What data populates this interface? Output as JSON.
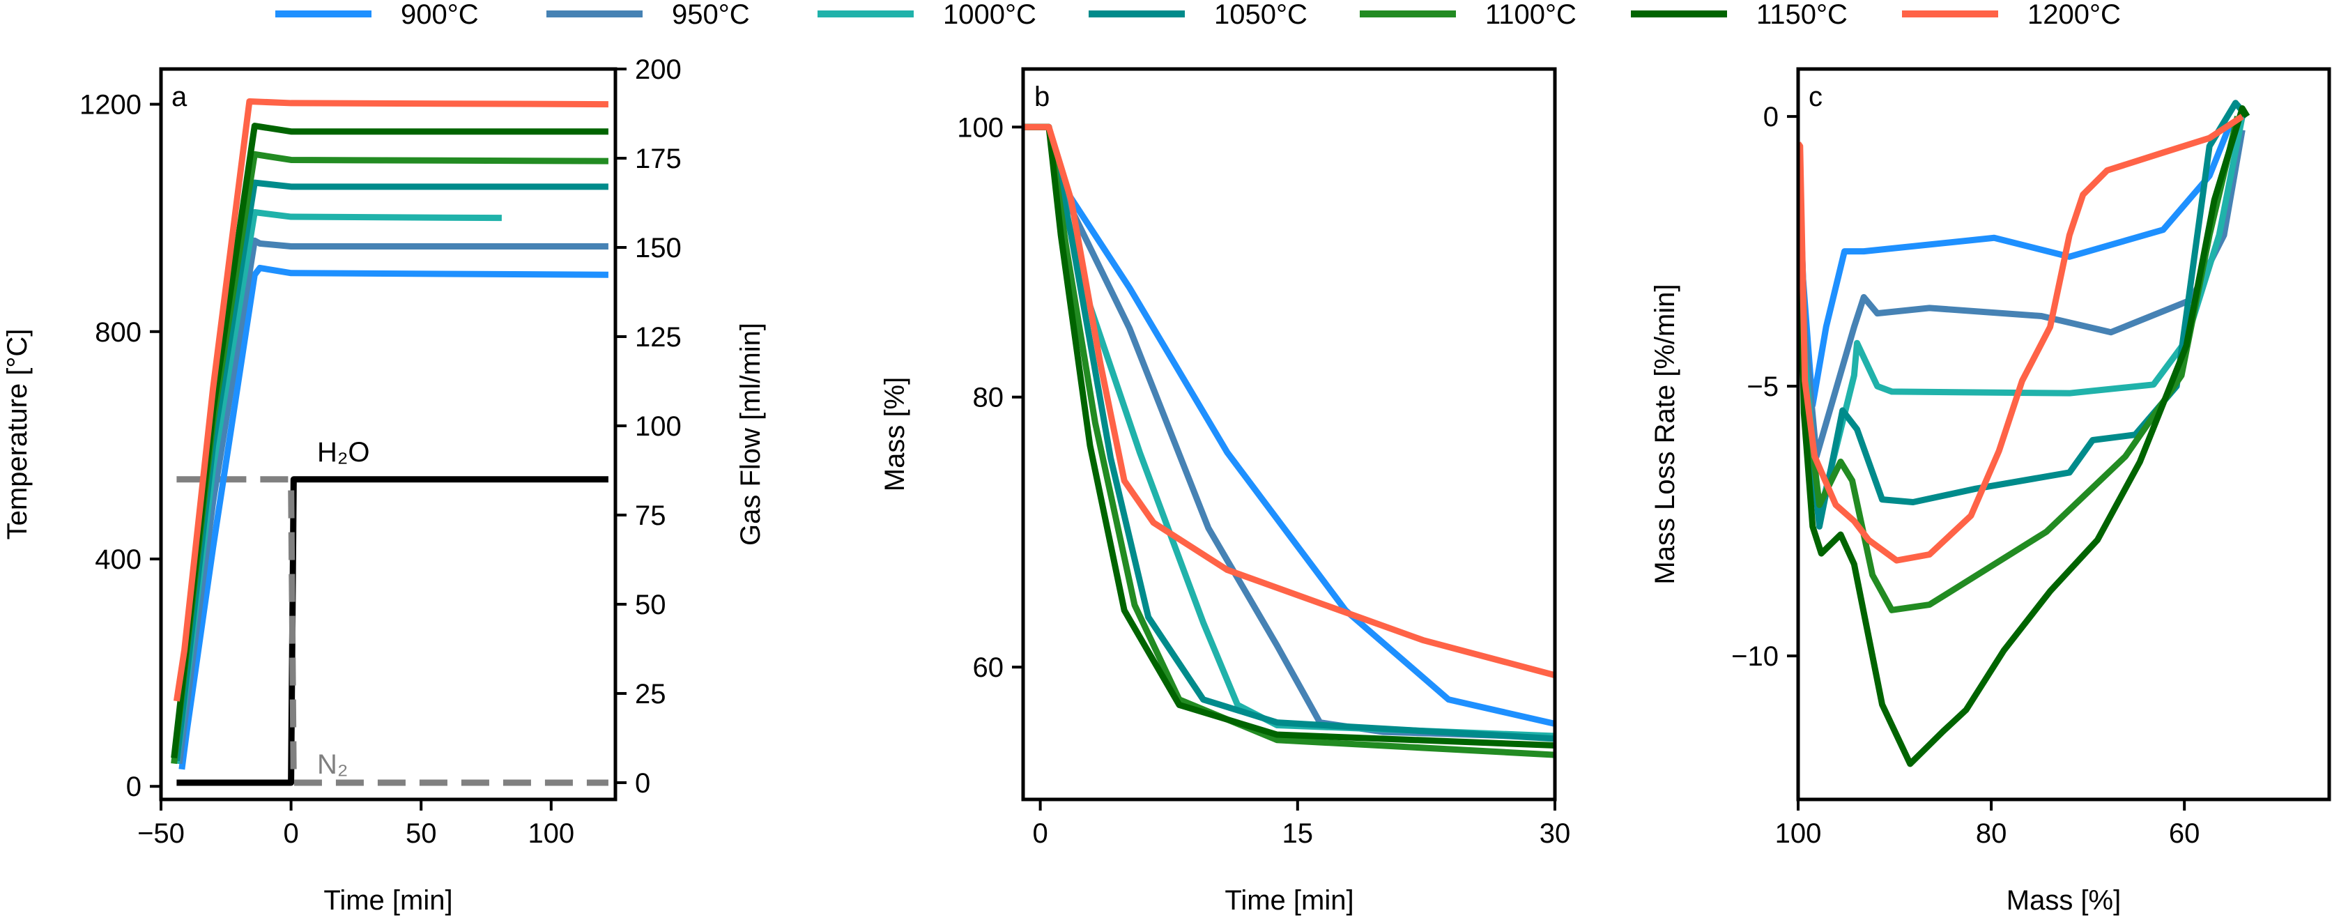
{
  "legend": {
    "placement": "top",
    "items": [
      {
        "label": "900°C",
        "color": "#1e90ff"
      },
      {
        "label": "950°C",
        "color": "#4682b4"
      },
      {
        "label": "1000°C",
        "color": "#20b2aa"
      },
      {
        "label": "1050°C",
        "color": "#008b8b"
      },
      {
        "label": "1100°C",
        "color": "#228b22"
      },
      {
        "label": "1150°C",
        "color": "#006400"
      },
      {
        "label": "1200°C",
        "color": "#ff6347"
      }
    ]
  },
  "chart_data": [
    {
      "type": "line",
      "panel_label": "a",
      "xlabel": "Time [min]",
      "ylabel": "Temperature [°C]",
      "y2label": "Gas Flow [ml/min]",
      "xlim": [
        -50,
        124.7
      ],
      "ylim": [
        -23,
        1262
      ],
      "y2lim": [
        -4.7,
        200
      ],
      "xticks": [
        -50,
        0,
        50,
        100
      ],
      "xtick_labels": [
        "−50",
        "0",
        "50",
        "100"
      ],
      "yticks": [
        0,
        400,
        800,
        1200
      ],
      "y2ticks": [
        0,
        25,
        50,
        75,
        100,
        125,
        150,
        175,
        200
      ],
      "series": [
        {
          "name": "900°C",
          "points": [
            [
              -42,
              30
            ],
            [
              -40,
              100
            ],
            [
              -30,
              420
            ],
            [
              -14,
              900
            ],
            [
              -12,
              912
            ],
            [
              0,
              903
            ],
            [
              122,
              900
            ]
          ]
        },
        {
          "name": "950°C",
          "points": [
            [
              -43,
              40
            ],
            [
              -41,
              110
            ],
            [
              -30,
              500
            ],
            [
              -14,
              960
            ],
            [
              -12,
              955
            ],
            [
              0,
              950
            ],
            [
              122,
              950
            ]
          ]
        },
        {
          "name": "1000°C",
          "points": [
            [
              -44,
              40
            ],
            [
              -42,
              110
            ],
            [
              -30,
              560
            ],
            [
              -14,
              1010
            ],
            [
              0,
              1002
            ],
            [
              81,
              1000
            ]
          ]
        },
        {
          "name": "1050°C",
          "points": [
            [
              -44,
              45
            ],
            [
              -42,
              120
            ],
            [
              -30,
              600
            ],
            [
              -14,
              1062
            ],
            [
              0,
              1055
            ],
            [
              122,
              1055
            ]
          ]
        },
        {
          "name": "1100°C",
          "points": [
            [
              -45,
              40
            ],
            [
              -43,
              120
            ],
            [
              -30,
              640
            ],
            [
              -14,
              1112
            ],
            [
              0,
              1102
            ],
            [
              122,
              1100
            ]
          ]
        },
        {
          "name": "1150°C",
          "points": [
            [
              -45,
              50
            ],
            [
              -43,
              130
            ],
            [
              -30,
              660
            ],
            [
              -14,
              1162
            ],
            [
              0,
              1152
            ],
            [
              122,
              1152
            ]
          ]
        },
        {
          "name": "1200°C",
          "points": [
            [
              -44,
              150
            ],
            [
              -41,
              240
            ],
            [
              -30,
              700
            ],
            [
              -16,
              1205
            ],
            [
              0,
              1202
            ],
            [
              122,
              1200
            ]
          ]
        }
      ],
      "gas_series": [
        {
          "name": "H₂O",
          "style": "solid",
          "color": "#000000",
          "points": [
            [
              -44,
              0
            ],
            [
              0,
              0
            ],
            [
              1,
              85
            ],
            [
              122,
              85
            ]
          ]
        },
        {
          "name": "N₂",
          "style": "dashed",
          "color": "#808080",
          "points": [
            [
              -44,
              85
            ],
            [
              0,
              85
            ],
            [
              1,
              0
            ],
            [
              122,
              0
            ]
          ]
        }
      ],
      "annotations": {
        "h2o": "H₂O",
        "n2": "N₂"
      }
    },
    {
      "type": "line",
      "panel_label": "b",
      "xlabel": "Time [min]",
      "ylabel": "Mass [%]",
      "xlim": [
        -1,
        30
      ],
      "ylim": [
        50.2,
        104.3
      ],
      "xticks": [
        0,
        15,
        30
      ],
      "yticks": [
        60,
        80,
        100
      ],
      "series": [
        {
          "name": "900°C",
          "points": [
            [
              -1,
              100
            ],
            [
              0.5,
              100
            ],
            [
              1.4,
              95.5
            ],
            [
              5.2,
              88.1
            ],
            [
              10.9,
              75.9
            ],
            [
              17.8,
              64.2
            ],
            [
              23.8,
              57.6
            ],
            [
              30,
              55.8
            ]
          ]
        },
        {
          "name": "950°C",
          "points": [
            [
              -1,
              100
            ],
            [
              0.5,
              100
            ],
            [
              1.2,
              95.5
            ],
            [
              5.2,
              85.1
            ],
            [
              9.8,
              70.3
            ],
            [
              13.8,
              61.6
            ],
            [
              16.3,
              55.9
            ],
            [
              20,
              55.2
            ],
            [
              30,
              54.8
            ]
          ]
        },
        {
          "name": "1000°C",
          "points": [
            [
              -1,
              100
            ],
            [
              0.5,
              100
            ],
            [
              2.3,
              89
            ],
            [
              5.8,
              75.9
            ],
            [
              9.5,
              63.3
            ],
            [
              11.5,
              57.2
            ],
            [
              13.8,
              55.7
            ],
            [
              30,
              54.9
            ]
          ]
        },
        {
          "name": "1050°C",
          "points": [
            [
              -1,
              100
            ],
            [
              0.5,
              100
            ],
            [
              1.8,
              92
            ],
            [
              4.1,
              75.5
            ],
            [
              6.3,
              63.7
            ],
            [
              9.5,
              57.6
            ],
            [
              13.8,
              55.9
            ],
            [
              30,
              54.7
            ]
          ]
        },
        {
          "name": "1100°C",
          "points": [
            [
              -1,
              100
            ],
            [
              0.5,
              100
            ],
            [
              1.5,
              91.2
            ],
            [
              3.2,
              78.1
            ],
            [
              5.5,
              64.6
            ],
            [
              8.1,
              57.6
            ],
            [
              13.8,
              54.6
            ],
            [
              30,
              53.5
            ]
          ]
        },
        {
          "name": "1150°C",
          "points": [
            [
              -1,
              100
            ],
            [
              0.5,
              100
            ],
            [
              1.2,
              92
            ],
            [
              2.9,
              76.4
            ],
            [
              4.9,
              64.2
            ],
            [
              8.1,
              57.2
            ],
            [
              13.8,
              55
            ],
            [
              30,
              54.2
            ]
          ]
        },
        {
          "name": "1200°C",
          "points": [
            [
              -1,
              100
            ],
            [
              0.5,
              100
            ],
            [
              1.8,
              94.6
            ],
            [
              3.5,
              82.5
            ],
            [
              4.9,
              73.8
            ],
            [
              6.6,
              70.7
            ],
            [
              10.9,
              67.2
            ],
            [
              16.6,
              64.6
            ],
            [
              22.3,
              62
            ],
            [
              30,
              59.4
            ]
          ]
        }
      ]
    },
    {
      "type": "line",
      "panel_label": "c",
      "xlabel": "Mass [%]",
      "ylabel": "Mass Loss Rate [%/min]",
      "xlim": [
        100,
        45
      ],
      "ylim": [
        -12.66,
        0.88
      ],
      "xticks": [
        100,
        80,
        60
      ],
      "yticks": [
        -10,
        -5,
        0
      ],
      "ytick_labels": [
        "−10",
        "−5",
        "0"
      ],
      "series": [
        {
          "name": "900°C",
          "points": [
            [
              100,
              -0.5
            ],
            [
              99.5,
              -3
            ],
            [
              98.5,
              -5.35
            ],
            [
              97.1,
              -3.9
            ],
            [
              95.2,
              -2.5
            ],
            [
              93.2,
              -2.5
            ],
            [
              79.7,
              -2.25
            ],
            [
              71.9,
              -2.6
            ],
            [
              62.2,
              -2.1
            ],
            [
              57.4,
              -1.1
            ],
            [
              55.5,
              -0.25
            ],
            [
              54,
              0
            ]
          ]
        },
        {
          "name": "950°C",
          "points": [
            [
              100,
              -0.5
            ],
            [
              99.3,
              -4
            ],
            [
              98.1,
              -6.3
            ],
            [
              94.2,
              -3.9
            ],
            [
              93.2,
              -3.35
            ],
            [
              91.8,
              -3.65
            ],
            [
              86.4,
              -3.55
            ],
            [
              74.8,
              -3.7
            ],
            [
              67.6,
              -4.0
            ],
            [
              59.3,
              -3.4
            ],
            [
              55.9,
              -2.2
            ],
            [
              54,
              -0.25
            ]
          ]
        },
        {
          "name": "1000°C",
          "points": [
            [
              100,
              -0.5
            ],
            [
              99.3,
              -4.5
            ],
            [
              97.8,
              -7.4
            ],
            [
              94.2,
              -4.8
            ],
            [
              93.9,
              -4.2
            ],
            [
              91.8,
              -5.0
            ],
            [
              90.3,
              -5.1
            ],
            [
              71.9,
              -5.13
            ],
            [
              63.2,
              -4.97
            ],
            [
              59.8,
              -4.15
            ],
            [
              56.4,
              -2.2
            ],
            [
              54,
              0
            ]
          ]
        },
        {
          "name": "1050°C",
          "points": [
            [
              100,
              -0.5
            ],
            [
              99.3,
              -5
            ],
            [
              97.8,
              -7.6
            ],
            [
              95.4,
              -5.45
            ],
            [
              93.9,
              -5.8
            ],
            [
              91.3,
              -7.1
            ],
            [
              88.1,
              -7.15
            ],
            [
              81.6,
              -6.9
            ],
            [
              71.9,
              -6.6
            ],
            [
              69.5,
              -6
            ],
            [
              65.1,
              -5.9
            ],
            [
              60.8,
              -5.0
            ],
            [
              57.4,
              -0.55
            ],
            [
              54.7,
              0.25
            ],
            [
              53.5,
              0
            ]
          ]
        },
        {
          "name": "1100°C",
          "points": [
            [
              100,
              -0.5
            ],
            [
              99.3,
              -5
            ],
            [
              97.8,
              -7.2
            ],
            [
              95.6,
              -6.4
            ],
            [
              94.4,
              -6.75
            ],
            [
              92.3,
              -8.5
            ],
            [
              90.3,
              -9.15
            ],
            [
              86.4,
              -9.05
            ],
            [
              74.3,
              -7.7
            ],
            [
              66.1,
              -6.3
            ],
            [
              60.3,
              -4.8
            ],
            [
              57.4,
              -2.2
            ],
            [
              54.5,
              0
            ]
          ]
        },
        {
          "name": "1150°C",
          "points": [
            [
              100,
              -0.5
            ],
            [
              99.4,
              -5.5
            ],
            [
              98.5,
              -7.6
            ],
            [
              97.6,
              -8.1
            ],
            [
              95.6,
              -7.75
            ],
            [
              94.2,
              -8.3
            ],
            [
              91.3,
              -10.9
            ],
            [
              88.4,
              -12.0
            ],
            [
              85,
              -11.4
            ],
            [
              82.6,
              -11
            ],
            [
              78.7,
              -9.9
            ],
            [
              73.9,
              -8.8
            ],
            [
              69,
              -7.85
            ],
            [
              64.6,
              -6.4
            ],
            [
              59.8,
              -4.25
            ],
            [
              56.9,
              -1.55
            ],
            [
              54,
              0.15
            ],
            [
              53.5,
              0
            ]
          ]
        },
        {
          "name": "1200°C",
          "points": [
            [
              100,
              -0.5
            ],
            [
              99.8,
              -0.55
            ],
            [
              99.3,
              -4.9
            ],
            [
              98.3,
              -6.3
            ],
            [
              96.1,
              -7.2
            ],
            [
              94.2,
              -7.5
            ],
            [
              92.7,
              -7.85
            ],
            [
              89.8,
              -8.23
            ],
            [
              86.4,
              -8.12
            ],
            [
              82.1,
              -7.4
            ],
            [
              79.2,
              -6.2
            ],
            [
              76.8,
              -4.9
            ],
            [
              73.9,
              -3.9
            ],
            [
              71.9,
              -2.2
            ],
            [
              70.5,
              -1.45
            ],
            [
              68,
              -1
            ],
            [
              62.2,
              -0.67
            ],
            [
              57.4,
              -0.4
            ],
            [
              54,
              0
            ]
          ]
        }
      ]
    }
  ]
}
